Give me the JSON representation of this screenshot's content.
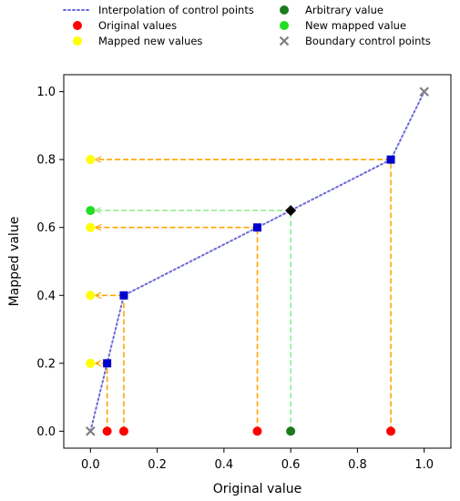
{
  "chart_data": {
    "type": "scatter",
    "xlabel": "Original value",
    "ylabel": "Mapped value",
    "xlim": [
      -0.08,
      1.08
    ],
    "ylim": [
      -0.05,
      1.05
    ],
    "xticks": [
      0.0,
      0.2,
      0.4,
      0.6,
      0.8,
      1.0
    ],
    "yticks": [
      0.0,
      0.2,
      0.4,
      0.6,
      0.8,
      1.0
    ],
    "xtick_labels": [
      "0.0",
      "0.2",
      "0.4",
      "0.6",
      "0.8",
      "1.0"
    ],
    "ytick_labels": [
      "0.0",
      "0.2",
      "0.4",
      "0.6",
      "0.8",
      "1.0"
    ],
    "grid": false,
    "legend": {
      "placement": "top",
      "entries": [
        {
          "label": "Interpolation of control points",
          "marker": "dotted-line",
          "color": "#6b6bdb"
        },
        {
          "label": "Arbitrary value",
          "marker": "circle",
          "color": "#1b7a1b"
        },
        {
          "label": "Original values",
          "marker": "circle",
          "color": "#ff0000"
        },
        {
          "label": "New mapped value",
          "marker": "circle",
          "color": "#22dd22"
        },
        {
          "label": "Mapped new values",
          "marker": "circle",
          "color": "#ffff00"
        },
        {
          "label": "Boundary control points",
          "marker": "x",
          "color": "#7f7f7f"
        }
      ]
    },
    "interpolation_line": {
      "color": "#6b6bdb",
      "points": [
        [
          0.0,
          0.0
        ],
        [
          0.05,
          0.2
        ],
        [
          0.1,
          0.4
        ],
        [
          0.5,
          0.6
        ],
        [
          0.9,
          0.8
        ],
        [
          1.0,
          1.0
        ]
      ]
    },
    "control_points": {
      "color": "#0000cc",
      "points": [
        [
          0.05,
          0.2
        ],
        [
          0.1,
          0.4
        ],
        [
          0.5,
          0.6
        ],
        [
          0.9,
          0.8
        ]
      ]
    },
    "boundary_control_points": {
      "color": "#7f7f7f",
      "points": [
        [
          0.0,
          0.0
        ],
        [
          1.0,
          1.0
        ]
      ]
    },
    "original_values": {
      "color": "#ff0000",
      "x": [
        0.05,
        0.1,
        0.5,
        0.9
      ]
    },
    "mapped_new_values": {
      "color": "#ffff00",
      "y": [
        0.2,
        0.4,
        0.6,
        0.8
      ]
    },
    "mapping_guides_color": "#ffa500",
    "arbitrary_value": {
      "color": "#1b7a1b",
      "x": 0.6
    },
    "arbitrary_point": {
      "color": "#000000",
      "x": 0.6,
      "y": 0.65
    },
    "new_mapped_value": {
      "color": "#22dd22",
      "y": 0.65
    },
    "arbitrary_guide_color": "#90ee90"
  }
}
